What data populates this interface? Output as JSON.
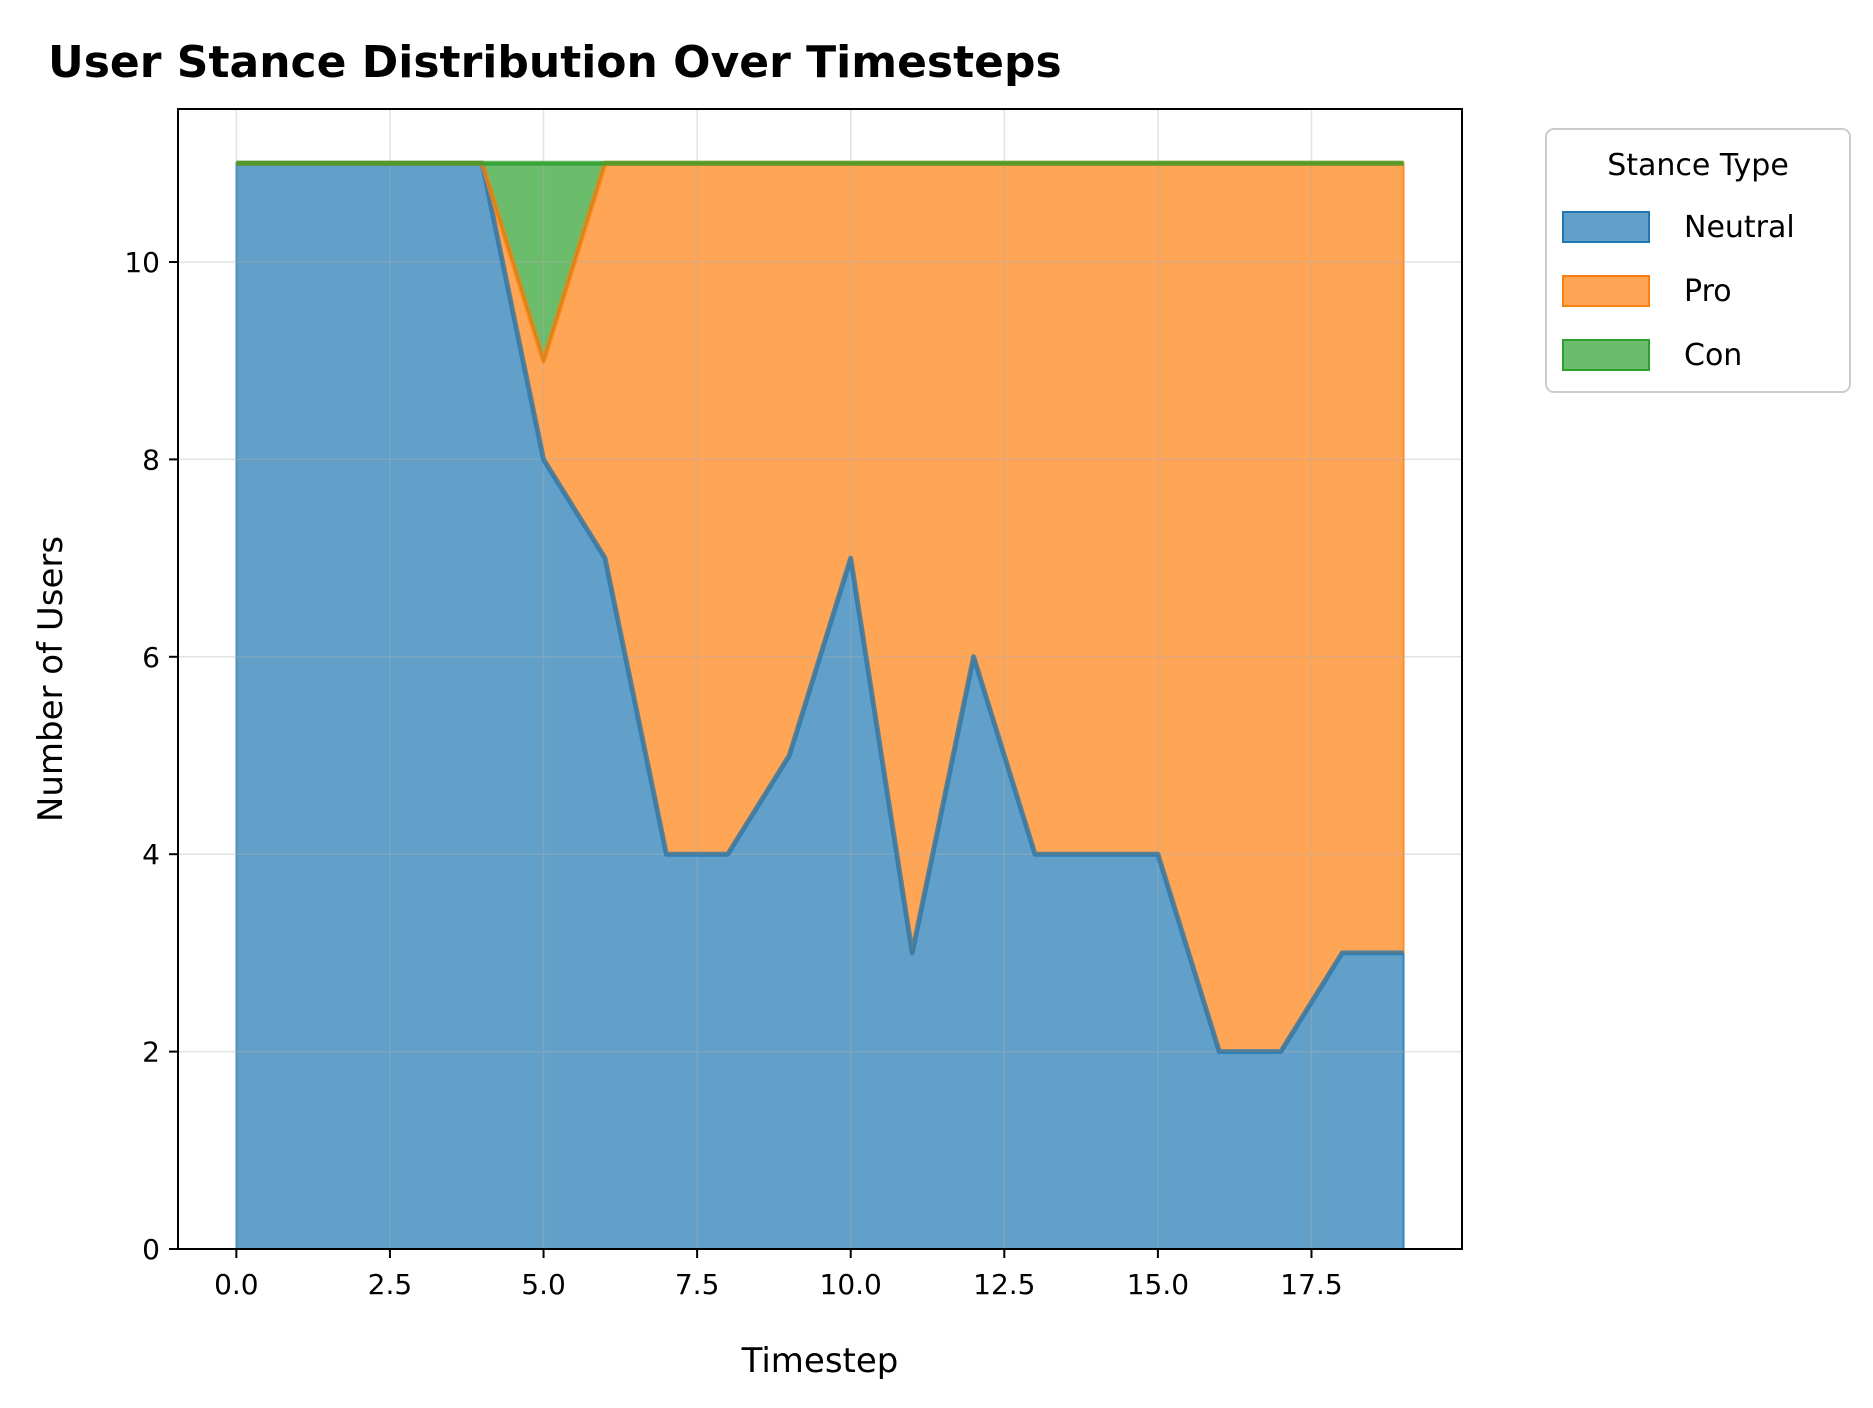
{
  "chart_data": {
    "type": "area",
    "stacked": true,
    "title": "User Stance Distribution Over Timesteps",
    "xlabel": "Timestep",
    "ylabel": "Number of Users",
    "xlim": [
      -0.95,
      19.95
    ],
    "ylim": [
      0,
      11.55
    ],
    "xticks": [
      "0.0",
      "2.5",
      "5.0",
      "7.5",
      "10.0",
      "12.5",
      "15.0",
      "17.5"
    ],
    "xtick_values": [
      0,
      2.5,
      5,
      7.5,
      10,
      12.5,
      15,
      17.5
    ],
    "yticks": [
      "0",
      "2",
      "4",
      "6",
      "8",
      "10"
    ],
    "ytick_values": [
      0,
      2,
      4,
      6,
      8,
      10
    ],
    "grid": true,
    "legend_title": "Stance Type",
    "legend_position": "outside upper right",
    "x": [
      0,
      1,
      2,
      3,
      4,
      5,
      6,
      7,
      8,
      9,
      10,
      11,
      12,
      13,
      14,
      15,
      16,
      17,
      18,
      19
    ],
    "series": [
      {
        "name": "Neutral",
        "color": "#1f77b4",
        "values": [
          11,
          11,
          11,
          11,
          11,
          8,
          7,
          4,
          4,
          5,
          7,
          3,
          6,
          4,
          4,
          4,
          2,
          2,
          3,
          3
        ]
      },
      {
        "name": "Pro",
        "color": "#ff7f0e",
        "values": [
          0,
          0,
          0,
          0,
          0,
          1,
          4,
          7,
          7,
          6,
          4,
          8,
          5,
          7,
          7,
          7,
          9,
          9,
          8,
          8
        ]
      },
      {
        "name": "Con",
        "color": "#2ca02c",
        "values": [
          0,
          0,
          0,
          0,
          0,
          2,
          0,
          0,
          0,
          0,
          0,
          0,
          0,
          0,
          0,
          0,
          0,
          0,
          0,
          0
        ]
      }
    ]
  }
}
